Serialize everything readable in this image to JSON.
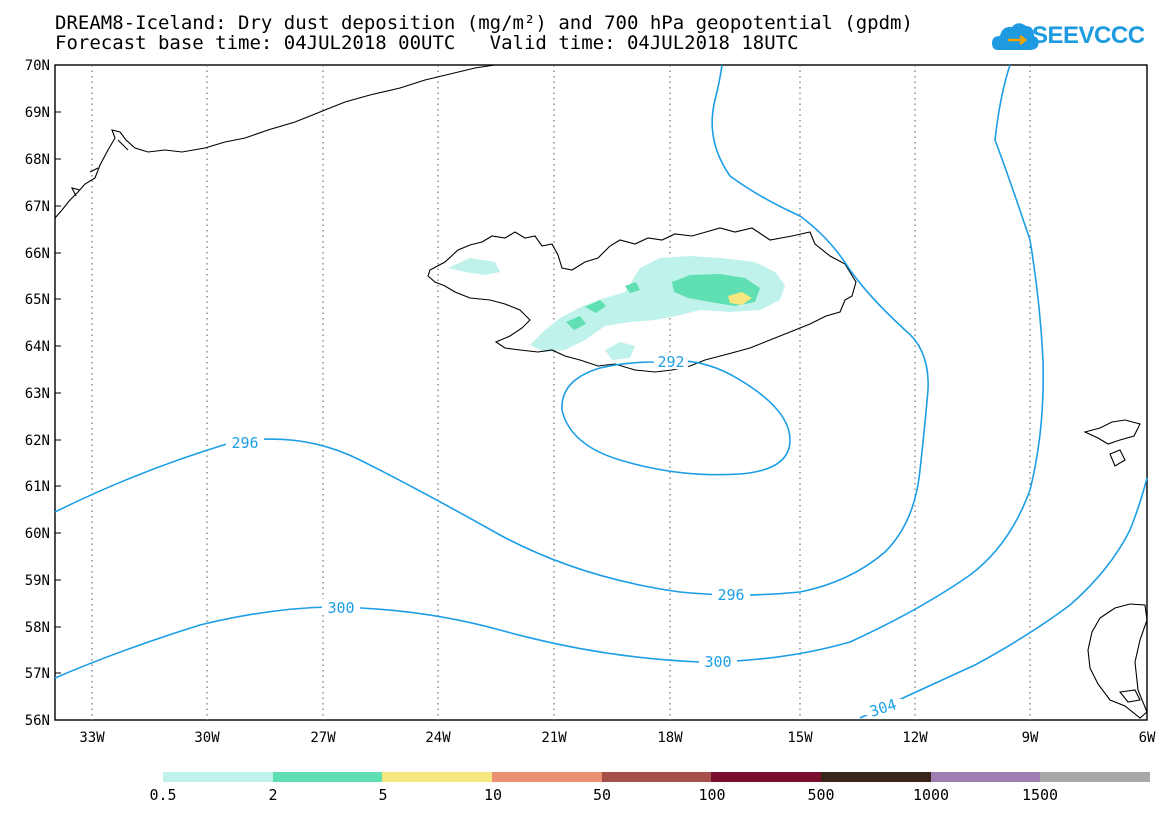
{
  "header": {
    "title_line1": "DREAM8-Iceland: Dry dust deposition (mg/m²) and 700 hPa geopotential (gpdm)",
    "title_line2": "Forecast base time: 04JUL2018 00UTC   Valid time: 04JUL2018 18UTC",
    "logo_text": "SEEVCCC"
  },
  "map": {
    "region": "Iceland",
    "lat_ticks": [
      "70N",
      "69N",
      "68N",
      "67N",
      "66N",
      "65N",
      "64N",
      "63N",
      "62N",
      "61N",
      "60N",
      "59N",
      "58N",
      "57N",
      "56N"
    ],
    "lon_ticks": [
      "33W",
      "30W",
      "27W",
      "24W",
      "21W",
      "18W",
      "15W",
      "12W",
      "9W",
      "6W"
    ],
    "gridlines": "dotted",
    "contour_labels": [
      "296",
      "300",
      "296",
      "300",
      "304",
      "292"
    ],
    "contour_color": "#1c9ee6"
  },
  "legend": {
    "colors": [
      "#bff2ea",
      "#5fdfb2",
      "#f6e87e",
      "#eb9072",
      "#a5504a",
      "#7b0d2e",
      "#3a2618",
      "#a07db0",
      "#a8a8a8"
    ],
    "labels": [
      "0.5",
      "2",
      "5",
      "10",
      "50",
      "100",
      "500",
      "1000",
      "1500"
    ]
  }
}
